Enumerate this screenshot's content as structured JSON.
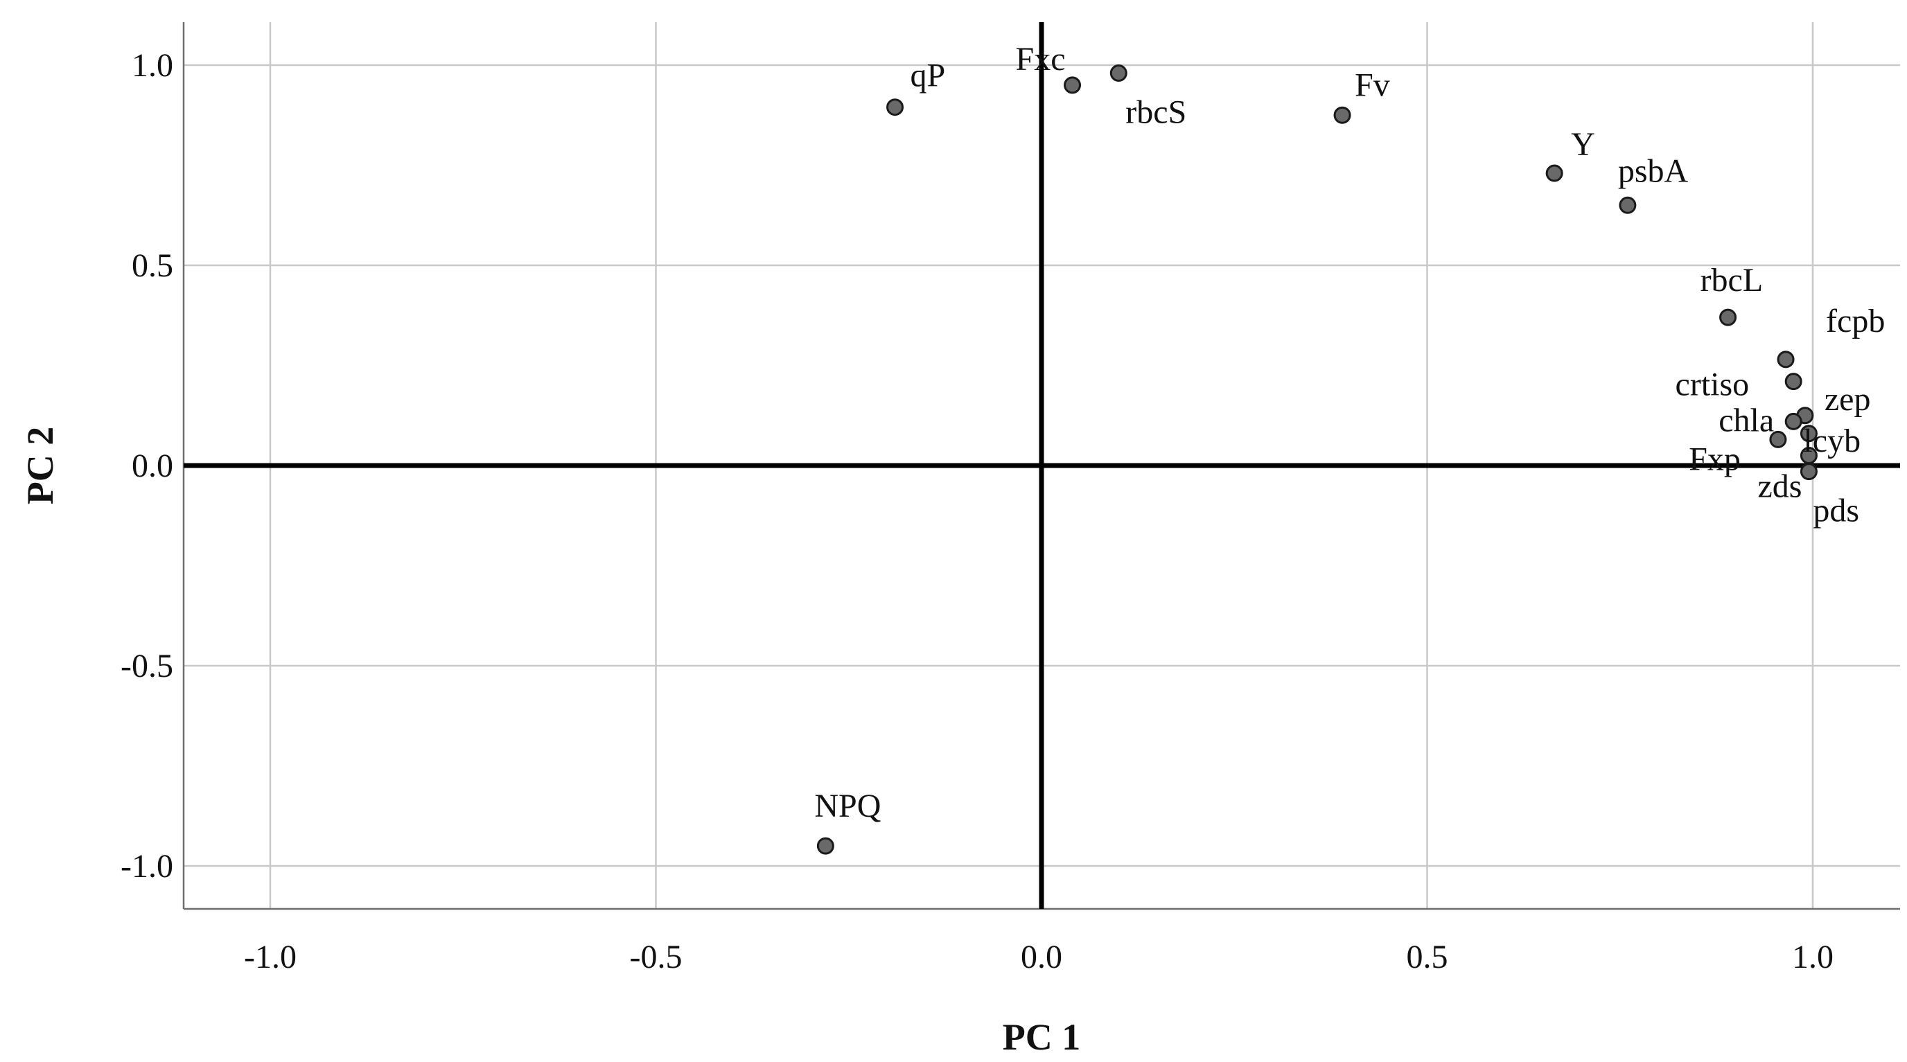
{
  "chart_data": {
    "type": "scatter",
    "title": "",
    "xlabel": "PC 1",
    "ylabel": "PC 2",
    "xlim": [
      -1.1,
      1.1
    ],
    "ylim": [
      -1.1,
      1.1
    ],
    "x_ticks": [
      -1.0,
      -0.5,
      0.0,
      0.5,
      1.0
    ],
    "y_ticks": [
      -1.0,
      -0.5,
      0.0,
      0.5,
      1.0
    ],
    "x_tick_labels": [
      "-1.0",
      "-0.5",
      "0.0",
      "0.5",
      "1.0"
    ],
    "y_tick_labels": [
      "-1.0",
      "-0.5",
      "0.0",
      "0.5",
      "1.0"
    ],
    "grid": true,
    "reference_lines": [
      "x = 0",
      "y = 0"
    ],
    "marker_color": "#696969",
    "points": [
      {
        "label": "qP",
        "x": -0.19,
        "y": 0.895
      },
      {
        "label": "Fxc",
        "x": 0.04,
        "y": 0.95
      },
      {
        "label": "rbcS",
        "x": 0.1,
        "y": 0.98
      },
      {
        "label": "Fv",
        "x": 0.39,
        "y": 0.875
      },
      {
        "label": "Y",
        "x": 0.665,
        "y": 0.73
      },
      {
        "label": "psbA",
        "x": 0.76,
        "y": 0.65
      },
      {
        "label": "rbcL",
        "x": 0.89,
        "y": 0.37
      },
      {
        "label": "fcpb",
        "x": 0.965,
        "y": 0.265
      },
      {
        "label": "crtiso",
        "x": 0.975,
        "y": 0.21
      },
      {
        "label": "zep",
        "x": 0.99,
        "y": 0.125
      },
      {
        "label": "chla",
        "x": 0.975,
        "y": 0.11
      },
      {
        "label": "lcyb",
        "x": 0.995,
        "y": 0.08
      },
      {
        "label": "Fxp",
        "x": 0.955,
        "y": 0.065
      },
      {
        "label": "zds",
        "x": 0.995,
        "y": 0.025
      },
      {
        "label": "pds",
        "x": 0.995,
        "y": -0.015
      },
      {
        "label": "NPQ",
        "x": -0.28,
        "y": -0.95
      }
    ]
  }
}
